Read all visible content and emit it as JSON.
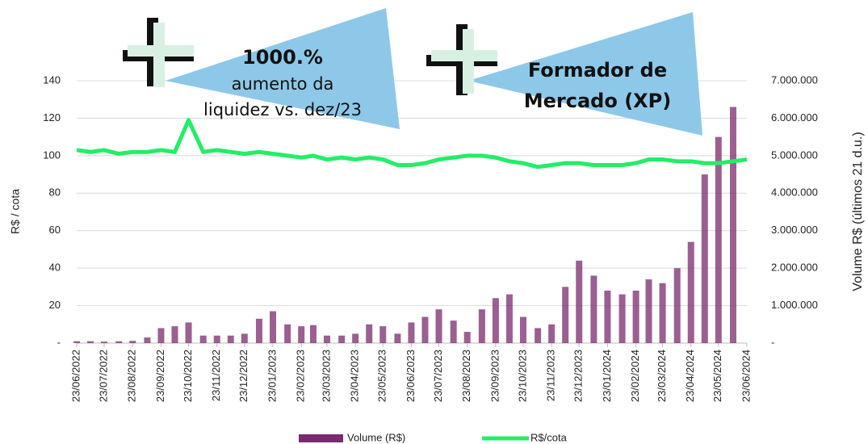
{
  "chart_data": {
    "type": "bar_line",
    "y_label": "R$ / cota",
    "y2_label": "Volume R$ (últimos 21 d.u.)",
    "annotations": [
      {
        "lines": [
          "1000.%",
          "aumento da",
          "liquidez vs. dez/23"
        ]
      },
      {
        "lines": [
          "Formador de",
          "Mercado (XP)"
        ]
      }
    ],
    "xlim": [
      "23/06/2022",
      "23/06/2024"
    ],
    "xticks": [
      "23/06/2022",
      "23/07/2022",
      "23/08/2022",
      "23/09/2022",
      "23/10/2022",
      "23/11/2022",
      "23/12/2022",
      "23/01/2023",
      "23/02/2023",
      "23/03/2023",
      "23/04/2023",
      "23/05/2023",
      "23/06/2023",
      "23/07/2023",
      "23/08/2023",
      "23/09/2023",
      "23/10/2023",
      "23/11/2023",
      "23/12/2023",
      "23/01/2024",
      "23/02/2024",
      "23/03/2024",
      "23/04/2024",
      "23/05/2024",
      "23/06/2024"
    ],
    "ylim": [
      0,
      140
    ],
    "yticks": [
      {
        "value": 0,
        "label": "-"
      },
      20,
      40,
      60,
      80,
      100,
      120,
      140
    ],
    "y2lim": [
      0,
      7000000
    ],
    "y2ticks": [
      {
        "value": 0,
        "label": "-"
      },
      {
        "value": 1000000,
        "label": "1.000.000"
      },
      {
        "value": 2000000,
        "label": "2.000.000"
      },
      {
        "value": 3000000,
        "label": "3.000.000"
      },
      {
        "value": 4000000,
        "label": "4.000.000"
      },
      {
        "value": 5000000,
        "label": "5.000.000"
      },
      {
        "value": 6000000,
        "label": "6.000.000"
      },
      {
        "value": 7000000,
        "label": "7.000.000"
      }
    ],
    "grid": true,
    "x": [
      "23/06/2022",
      "08/07/2022",
      "23/07/2022",
      "08/08/2022",
      "23/08/2022",
      "08/09/2022",
      "23/09/2022",
      "08/10/2022",
      "23/10/2022",
      "08/11/2022",
      "23/11/2022",
      "08/12/2022",
      "23/12/2022",
      "08/01/2023",
      "23/01/2023",
      "08/02/2023",
      "23/02/2023",
      "08/03/2023",
      "23/03/2023",
      "08/04/2023",
      "23/04/2023",
      "08/05/2023",
      "23/05/2023",
      "08/06/2023",
      "23/06/2023",
      "08/07/2023",
      "23/07/2023",
      "08/08/2023",
      "23/08/2023",
      "08/09/2023",
      "23/09/2023",
      "08/10/2023",
      "23/10/2023",
      "08/11/2023",
      "23/11/2023",
      "08/12/2023",
      "23/12/2023",
      "08/01/2024",
      "23/01/2024",
      "08/02/2024",
      "23/02/2024",
      "08/03/2024",
      "23/03/2024",
      "08/04/2024",
      "23/04/2024",
      "08/05/2024",
      "23/05/2024",
      "08/06/2024",
      "23/06/2024"
    ],
    "series": [
      {
        "name": "Volume (R$)",
        "color": "#7a2a6e",
        "axis": "y2",
        "kind": "bar",
        "values": [
          50000,
          50000,
          40000,
          50000,
          60000,
          150000,
          400000,
          450000,
          550000,
          200000,
          200000,
          200000,
          250000,
          650000,
          850000,
          500000,
          450000,
          480000,
          200000,
          200000,
          250000,
          500000,
          450000,
          250000,
          550000,
          700000,
          900000,
          600000,
          300000,
          900000,
          1200000,
          1300000,
          700000,
          400000,
          500000,
          1500000,
          2200000,
          1800000,
          1400000,
          1300000,
          1400000,
          1700000,
          1600000,
          2000000,
          2700000,
          4500000,
          5500000,
          6300000,
          null
        ]
      },
      {
        "name": "R$/cota",
        "color": "#22ee66",
        "axis": "y",
        "kind": "line",
        "values": [
          103,
          102,
          103,
          101,
          102,
          102,
          103,
          102,
          119,
          102,
          103,
          102,
          101,
          102,
          101,
          100,
          99,
          100,
          98,
          99,
          98,
          99,
          98,
          95,
          95,
          96,
          98,
          99,
          100,
          100,
          99,
          97,
          96,
          94,
          95,
          96,
          96,
          95,
          95,
          95,
          96,
          98,
          98,
          97,
          97,
          96,
          96,
          97,
          98
        ]
      }
    ]
  }
}
